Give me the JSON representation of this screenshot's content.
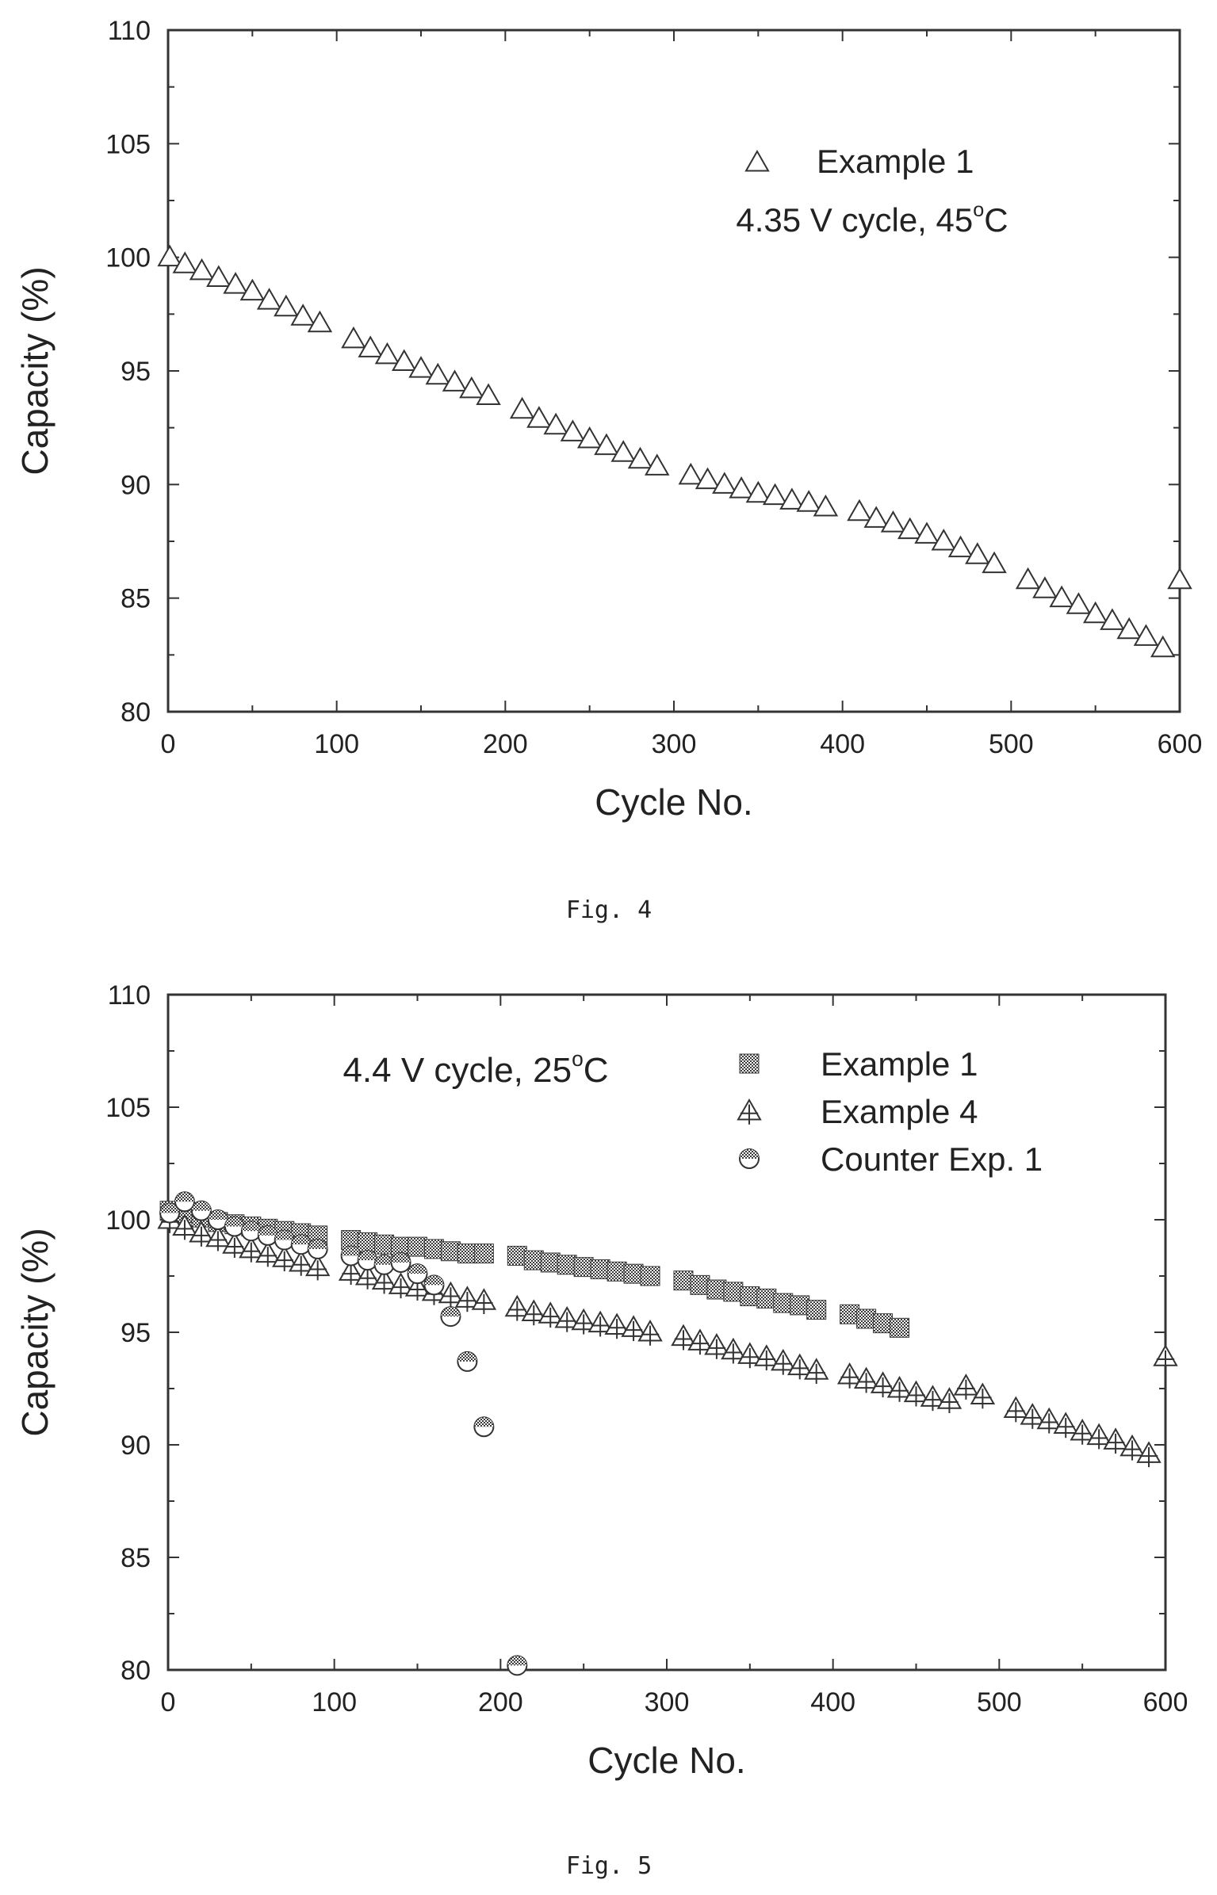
{
  "chart_data": [
    {
      "type": "scatter",
      "caption": "Fig. 4",
      "xlabel": "Cycle No.",
      "ylabel": "Capacity (%)",
      "xlim": [
        0,
        600
      ],
      "ylim": [
        80,
        110
      ],
      "xticks": [
        0,
        100,
        200,
        300,
        400,
        500,
        600
      ],
      "yticks": [
        80,
        85,
        90,
        95,
        100,
        105,
        110
      ],
      "annotation": "4.35 V cycle, 45°C",
      "legend_position": "top-right",
      "grid": false,
      "series": [
        {
          "name": "Example 1",
          "marker": "open-triangle",
          "x": [
            1,
            10,
            20,
            30,
            40,
            50,
            60,
            70,
            80,
            90,
            110,
            120,
            130,
            140,
            150,
            160,
            170,
            180,
            190,
            210,
            220,
            230,
            240,
            250,
            260,
            270,
            280,
            290,
            310,
            320,
            330,
            340,
            350,
            360,
            370,
            380,
            390,
            410,
            420,
            430,
            440,
            450,
            460,
            470,
            480,
            490,
            510,
            520,
            530,
            540,
            550,
            560,
            570,
            580,
            590,
            600
          ],
          "y": [
            100.0,
            99.7,
            99.4,
            99.1,
            98.8,
            98.5,
            98.1,
            97.8,
            97.4,
            97.1,
            96.4,
            96.0,
            95.7,
            95.4,
            95.1,
            94.8,
            94.5,
            94.2,
            93.9,
            93.3,
            92.9,
            92.6,
            92.3,
            92.0,
            91.7,
            91.4,
            91.1,
            90.8,
            90.4,
            90.2,
            90.0,
            89.8,
            89.6,
            89.5,
            89.3,
            89.2,
            89.0,
            88.8,
            88.5,
            88.3,
            88.0,
            87.8,
            87.5,
            87.2,
            86.9,
            86.5,
            85.8,
            85.4,
            85.0,
            84.7,
            84.3,
            84.0,
            83.6,
            83.3,
            82.8,
            85.8
          ]
        }
      ]
    },
    {
      "type": "scatter",
      "caption": "Fig. 5",
      "xlabel": "Cycle No.",
      "ylabel": "Capacity (%)",
      "xlim": [
        0,
        600
      ],
      "ylim": [
        80,
        110
      ],
      "xticks": [
        0,
        100,
        200,
        300,
        400,
        500,
        600
      ],
      "yticks": [
        80,
        85,
        90,
        95,
        100,
        105,
        110
      ],
      "annotation": "4.4 V cycle, 25°C",
      "legend_position": "top-right",
      "grid": false,
      "series": [
        {
          "name": "Example 1",
          "marker": "filled-square",
          "x": [
            1,
            10,
            20,
            30,
            40,
            50,
            60,
            70,
            80,
            90,
            110,
            120,
            130,
            140,
            150,
            160,
            170,
            180,
            190,
            210,
            220,
            230,
            240,
            250,
            260,
            270,
            280,
            290,
            310,
            320,
            330,
            340,
            350,
            360,
            370,
            380,
            390,
            410,
            420,
            430,
            440
          ],
          "y": [
            100.4,
            100.3,
            100.1,
            99.9,
            99.8,
            99.7,
            99.6,
            99.5,
            99.4,
            99.3,
            99.1,
            99.0,
            98.9,
            98.8,
            98.8,
            98.7,
            98.6,
            98.5,
            98.5,
            98.4,
            98.2,
            98.1,
            98.0,
            97.9,
            97.8,
            97.7,
            97.6,
            97.5,
            97.3,
            97.1,
            96.9,
            96.8,
            96.6,
            96.5,
            96.3,
            96.2,
            96.0,
            95.8,
            95.6,
            95.4,
            95.2
          ]
        },
        {
          "name": "Example 4",
          "marker": "open-triangle-cross",
          "x": [
            1,
            10,
            20,
            30,
            40,
            50,
            60,
            70,
            80,
            90,
            110,
            120,
            130,
            140,
            150,
            160,
            170,
            180,
            190,
            210,
            220,
            230,
            240,
            250,
            260,
            270,
            280,
            290,
            310,
            320,
            330,
            340,
            350,
            360,
            370,
            380,
            390,
            410,
            420,
            430,
            440,
            450,
            460,
            470,
            480,
            490,
            510,
            520,
            530,
            540,
            550,
            560,
            570,
            580,
            590,
            600
          ],
          "y": [
            100.0,
            99.7,
            99.4,
            99.2,
            98.9,
            98.7,
            98.5,
            98.3,
            98.1,
            97.9,
            97.7,
            97.5,
            97.3,
            97.1,
            97.0,
            96.8,
            96.7,
            96.5,
            96.4,
            96.1,
            95.9,
            95.8,
            95.6,
            95.5,
            95.4,
            95.3,
            95.2,
            95.0,
            94.8,
            94.6,
            94.4,
            94.2,
            94.0,
            93.9,
            93.7,
            93.5,
            93.3,
            93.1,
            92.9,
            92.7,
            92.5,
            92.3,
            92.1,
            92.0,
            92.6,
            92.2,
            91.6,
            91.3,
            91.1,
            90.9,
            90.6,
            90.4,
            90.2,
            89.9,
            89.6,
            93.9
          ]
        },
        {
          "name": "Counter Exp. 1",
          "marker": "half-filled-circle",
          "x": [
            1,
            10,
            20,
            30,
            40,
            50,
            60,
            70,
            80,
            90,
            110,
            120,
            130,
            140,
            150,
            160,
            170,
            180,
            190,
            210
          ],
          "y": [
            100.3,
            100.8,
            100.4,
            100.0,
            99.7,
            99.5,
            99.3,
            99.1,
            98.9,
            98.7,
            98.4,
            98.2,
            98.0,
            98.1,
            97.6,
            97.1,
            95.7,
            93.7,
            90.8,
            80.2
          ]
        }
      ]
    }
  ]
}
